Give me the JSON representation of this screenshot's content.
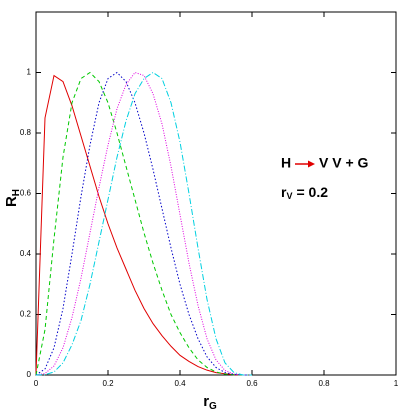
{
  "chart_data": {
    "type": "line",
    "xlabel": "r",
    "xlabel_sub": "G",
    "ylabel": "R",
    "ylabel_sub": "H",
    "process": {
      "initial": "H",
      "final": "V V + G",
      "arrow_color": "#e00000"
    },
    "parameter": {
      "name": "r",
      "sub": "V",
      "text": "= 0.2"
    },
    "x": [
      0,
      0.025,
      0.05,
      0.075,
      0.1,
      0.125,
      0.15,
      0.175,
      0.2,
      0.225,
      0.25,
      0.275,
      0.3,
      0.325,
      0.35,
      0.375,
      0.4,
      0.425,
      0.45,
      0.475,
      0.5,
      0.525,
      0.55,
      0.575,
      0.6
    ],
    "series": [
      {
        "color": "#e00000",
        "dash": "none",
        "values": [
          0,
          0.85,
          0.99,
          0.97,
          0.89,
          0.79,
          0.69,
          0.59,
          0.5,
          0.42,
          0.35,
          0.28,
          0.22,
          0.17,
          0.13,
          0.095,
          0.065,
          0.045,
          0.028,
          0.016,
          0.008,
          0.004,
          0.001,
          0,
          0
        ]
      },
      {
        "color": "#00c800",
        "dash": "4,3",
        "values": [
          0,
          0.15,
          0.45,
          0.72,
          0.9,
          0.98,
          1,
          0.97,
          0.9,
          0.8,
          0.69,
          0.58,
          0.47,
          0.37,
          0.28,
          0.2,
          0.14,
          0.09,
          0.05,
          0.025,
          0.01,
          0.003,
          0.001,
          0,
          0
        ]
      },
      {
        "color": "#0000c8",
        "dash": "1.5,2",
        "values": [
          0,
          0.02,
          0.09,
          0.22,
          0.4,
          0.59,
          0.76,
          0.9,
          0.98,
          1,
          0.97,
          0.9,
          0.8,
          0.68,
          0.55,
          0.42,
          0.3,
          0.2,
          0.12,
          0.06,
          0.025,
          0.008,
          0.002,
          0,
          0
        ]
      },
      {
        "color": "#e000e0",
        "dash": "1,1.5",
        "values": [
          0,
          0.005,
          0.03,
          0.09,
          0.19,
          0.32,
          0.47,
          0.62,
          0.76,
          0.88,
          0.96,
          1,
          0.99,
          0.93,
          0.83,
          0.69,
          0.53,
          0.37,
          0.23,
          0.12,
          0.05,
          0.015,
          0.003,
          0,
          0
        ]
      },
      {
        "color": "#00d0e0",
        "dash": "6,2,1,2",
        "values": [
          0,
          0.001,
          0.01,
          0.04,
          0.1,
          0.18,
          0.3,
          0.44,
          0.58,
          0.72,
          0.84,
          0.93,
          0.98,
          1,
          0.98,
          0.9,
          0.77,
          0.6,
          0.42,
          0.25,
          0.12,
          0.04,
          0.008,
          0,
          0
        ]
      }
    ],
    "xlim": [
      0,
      1
    ],
    "xticks": [
      0,
      0.2,
      0.4,
      0.6,
      0.8,
      1
    ],
    "ylim": [
      0,
      1.2
    ],
    "yticks": [
      0,
      0.2,
      0.4,
      0.6,
      0.8,
      1
    ]
  }
}
